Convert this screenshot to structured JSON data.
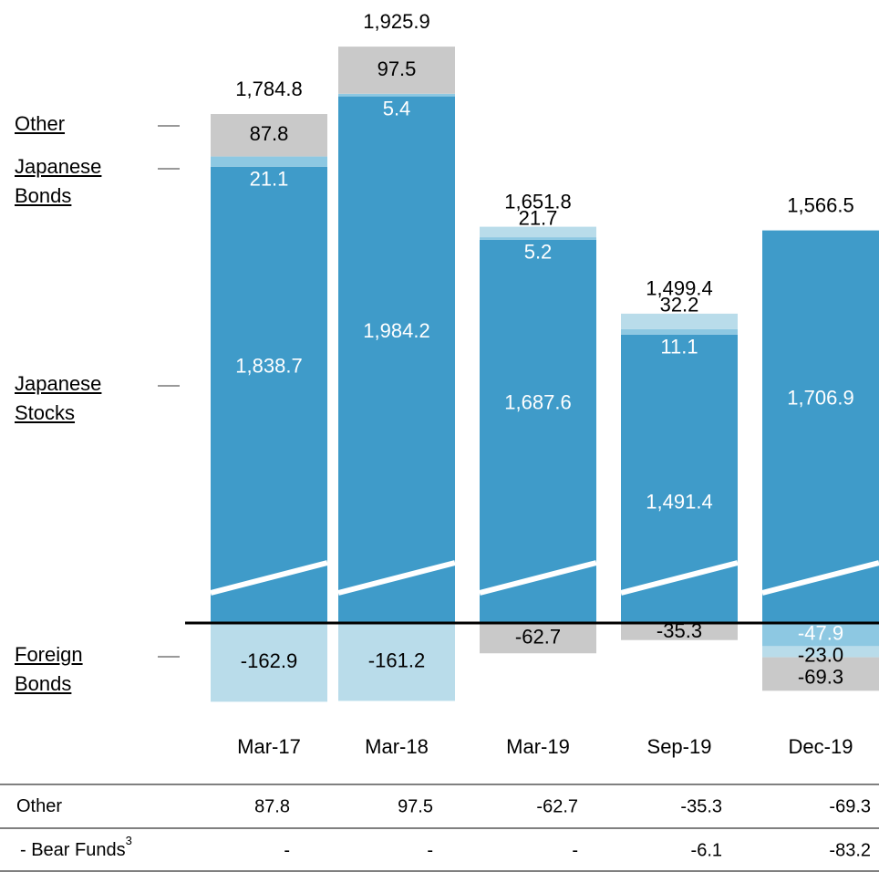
{
  "chart_data": {
    "type": "stacked-bar",
    "categories": [
      "Mar-17",
      "Mar-18",
      "Mar-19",
      "Sep-19",
      "Dec-19"
    ],
    "series": [
      {
        "name": "Japanese Stocks",
        "color": "#3f9bc9",
        "values": [
          1838.7,
          1984.2,
          1687.6,
          1491.4,
          1706.9
        ],
        "value_labels": [
          "1,838.7",
          "1,984.2",
          "1,687.6",
          "1,491.4",
          "1,706.9"
        ]
      },
      {
        "name": "Japanese Bonds",
        "color": "#8dc8e2",
        "values": [
          21.1,
          5.4,
          5.2,
          11.1,
          -47.9
        ]
      },
      {
        "name": "Foreign Bonds",
        "color": "#b9dcea",
        "values": [
          -162.9,
          -161.2,
          21.7,
          32.2,
          -23.0
        ],
        "value_labels": [
          "-162.9",
          "-161.2",
          "21.7",
          "32.2",
          "-23.0"
        ]
      },
      {
        "name": "Other",
        "color": "#c9c9c9",
        "values": [
          87.8,
          97.5,
          -62.7,
          -35.3,
          -69.3
        ]
      }
    ],
    "totals": [
      1784.8,
      1925.9,
      1651.8,
      1499.4,
      1566.5
    ],
    "total_labels": [
      "1,784.8",
      "1,925.9",
      "1,651.8",
      "1,499.4",
      "1,566.5"
    ]
  },
  "table": {
    "rows": [
      {
        "label": "Other",
        "values": [
          87.8,
          97.5,
          -62.7,
          -35.3,
          -69.3
        ]
      },
      {
        "label": "- Bear Funds",
        "note": "3",
        "values": [
          "-",
          "-",
          "-",
          -6.1,
          -83.2
        ]
      }
    ]
  }
}
